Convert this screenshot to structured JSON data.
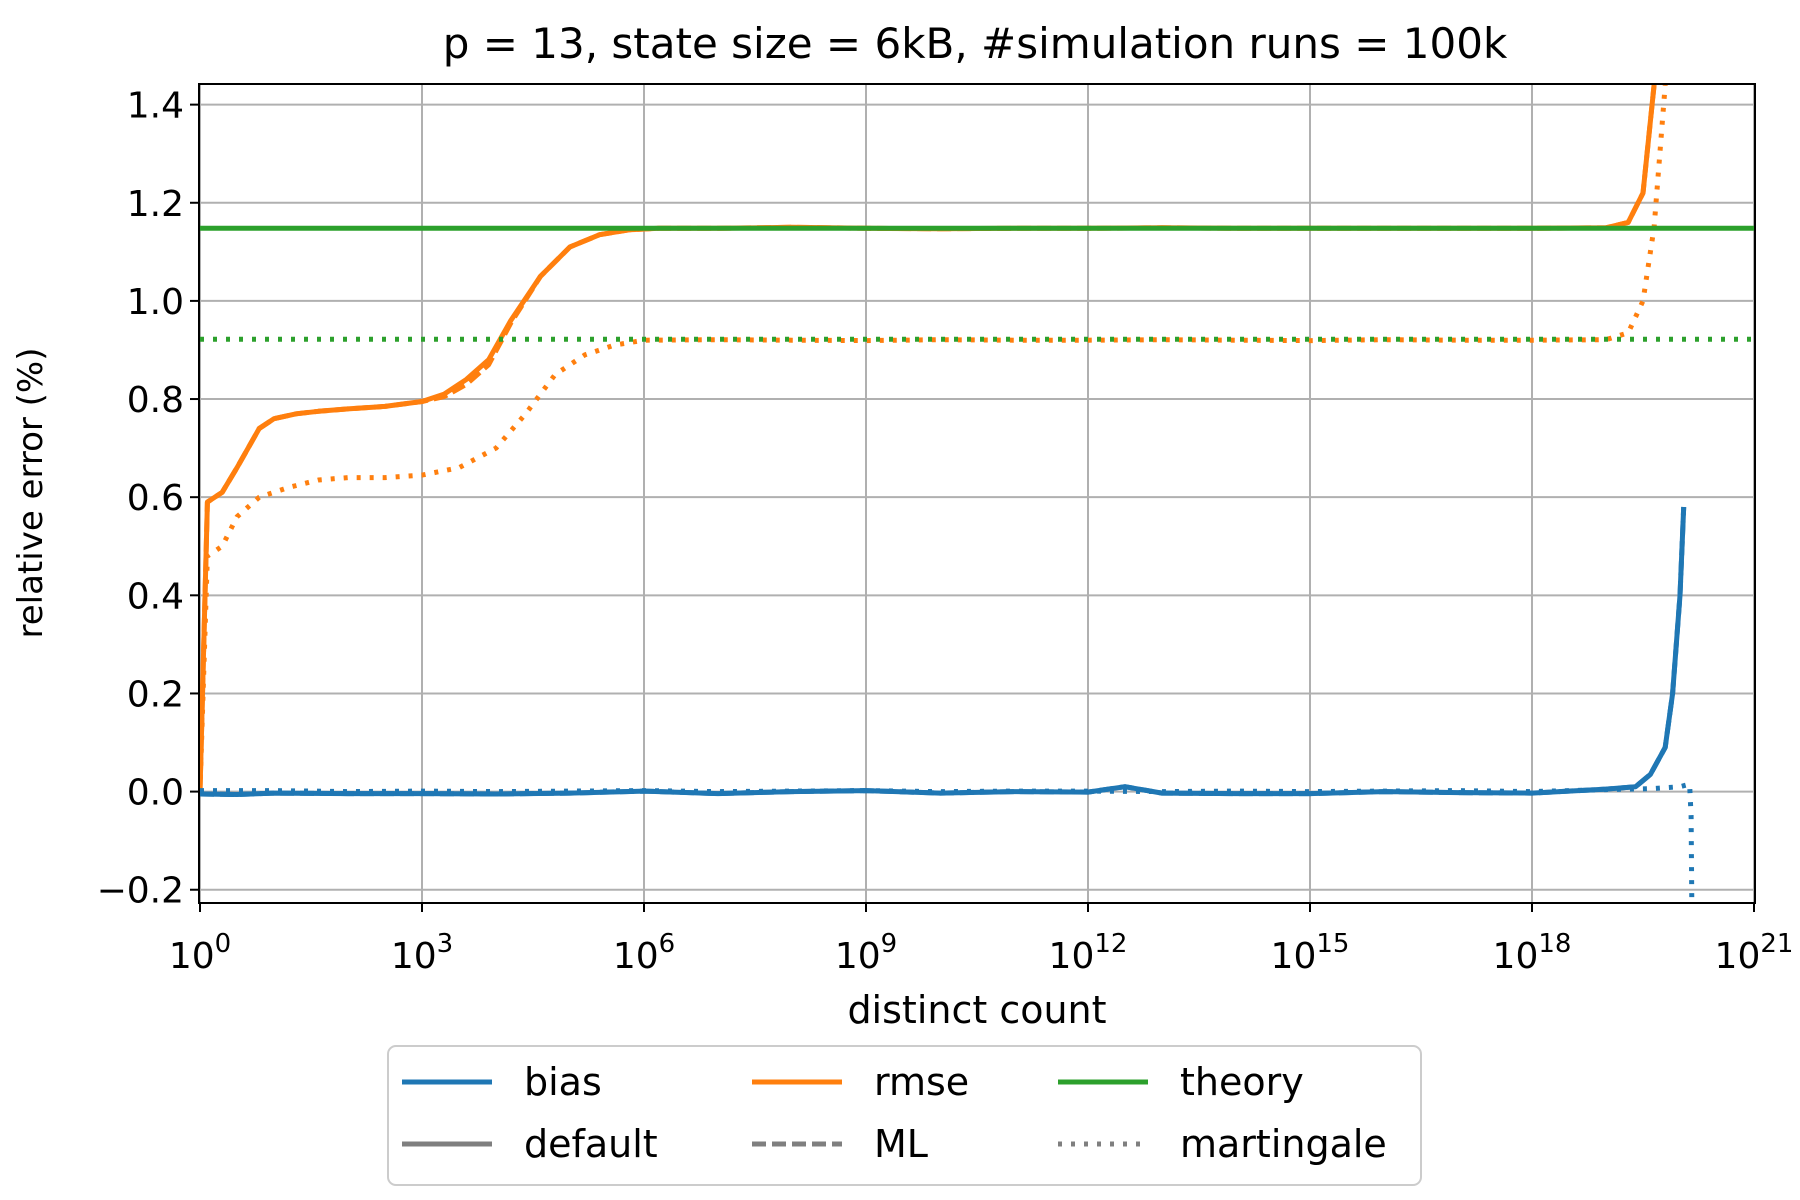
{
  "chart_data": {
    "type": "line",
    "title": "p = 13, state size = 6kB, #simulation runs = 100k",
    "xlabel": "distinct count",
    "ylabel": "relative error (%)",
    "xscale": "log",
    "xlim_exp": [
      0,
      21
    ],
    "ylim": [
      -0.225,
      1.44
    ],
    "x_ticks": [
      {
        "base": "10",
        "exp": "0"
      },
      {
        "base": "10",
        "exp": "3"
      },
      {
        "base": "10",
        "exp": "6"
      },
      {
        "base": "10",
        "exp": "9"
      },
      {
        "base": "10",
        "exp": "12"
      },
      {
        "base": "10",
        "exp": "15"
      },
      {
        "base": "10",
        "exp": "18"
      },
      {
        "base": "10",
        "exp": "21"
      }
    ],
    "x_tick_values": [
      0,
      3,
      6,
      9,
      12,
      15,
      18,
      21
    ],
    "y_ticks": [
      "−0.2",
      "0.0",
      "0.2",
      "0.4",
      "0.6",
      "0.8",
      "1.0",
      "1.2",
      "1.4"
    ],
    "y_tick_values": [
      -0.2,
      0.0,
      0.2,
      0.4,
      0.6,
      0.8,
      1.0,
      1.2,
      1.4
    ],
    "grid": true,
    "colors": {
      "bias": "#1f77b4",
      "rmse": "#ff7f0e",
      "theory": "#2ca02c",
      "style": "#7f7f7f"
    },
    "series": [
      {
        "name": "rmse (default)",
        "metric": "rmse",
        "style": "solid",
        "x_log10": [
          0,
          0.1,
          0.3,
          0.5,
          0.8,
          1.0,
          1.3,
          1.6,
          2,
          2.5,
          3,
          3.3,
          3.6,
          3.9,
          4.2,
          4.6,
          5,
          5.4,
          5.8,
          6.2,
          7,
          8,
          9,
          10,
          11,
          12,
          13,
          14,
          15,
          16,
          17,
          18,
          19,
          19.3,
          19.5,
          19.65
        ],
        "y": [
          0,
          0.59,
          0.61,
          0.66,
          0.74,
          0.76,
          0.77,
          0.775,
          0.78,
          0.785,
          0.795,
          0.81,
          0.84,
          0.88,
          0.96,
          1.05,
          1.11,
          1.135,
          1.145,
          1.148,
          1.148,
          1.15,
          1.148,
          1.147,
          1.148,
          1.148,
          1.149,
          1.148,
          1.148,
          1.148,
          1.148,
          1.148,
          1.149,
          1.16,
          1.22,
          1.44
        ]
      },
      {
        "name": "rmse (ML)",
        "metric": "rmse",
        "style": "dashed",
        "x_log10": [
          0,
          0.1,
          0.3,
          0.5,
          0.8,
          1.0,
          1.3,
          1.6,
          2,
          2.5,
          3,
          3.3,
          3.6,
          3.9,
          4.2,
          4.6,
          5,
          5.4,
          5.8,
          6.2,
          7,
          8,
          9,
          10,
          11,
          12,
          13,
          14,
          15,
          16,
          17,
          18,
          19,
          19.3,
          19.5,
          19.65
        ],
        "y": [
          0,
          0.59,
          0.61,
          0.66,
          0.74,
          0.76,
          0.77,
          0.775,
          0.78,
          0.785,
          0.795,
          0.805,
          0.83,
          0.87,
          0.955,
          1.05,
          1.11,
          1.135,
          1.145,
          1.148,
          1.148,
          1.15,
          1.148,
          1.147,
          1.148,
          1.148,
          1.149,
          1.148,
          1.148,
          1.148,
          1.148,
          1.148,
          1.149,
          1.16,
          1.22,
          1.44
        ]
      },
      {
        "name": "rmse (martingale)",
        "metric": "rmse",
        "style": "dotted",
        "x_log10": [
          0,
          0.1,
          0.3,
          0.5,
          0.8,
          1.2,
          1.6,
          2,
          2.5,
          3,
          3.5,
          4,
          4.4,
          4.8,
          5.2,
          5.6,
          6,
          7,
          8,
          9,
          10,
          11,
          12,
          13,
          14,
          15,
          16,
          17,
          18,
          19,
          19.3,
          19.5,
          19.65,
          19.8
        ],
        "y": [
          0,
          0.48,
          0.5,
          0.56,
          0.6,
          0.62,
          0.635,
          0.64,
          0.64,
          0.645,
          0.66,
          0.7,
          0.77,
          0.85,
          0.89,
          0.91,
          0.92,
          0.921,
          0.92,
          0.919,
          0.921,
          0.92,
          0.92,
          0.921,
          0.92,
          0.919,
          0.921,
          0.92,
          0.92,
          0.921,
          0.935,
          1.0,
          1.15,
          1.44
        ]
      },
      {
        "name": "bias (default)",
        "metric": "bias",
        "style": "solid",
        "x_log10": [
          0,
          0.5,
          1,
          2,
          3,
          4,
          5,
          6,
          7,
          8,
          9,
          10,
          11,
          12,
          12.5,
          13,
          14,
          15,
          16,
          17,
          18,
          19,
          19.4,
          19.6,
          19.8,
          19.9,
          20.0,
          20.05
        ],
        "y": [
          -0.005,
          -0.006,
          -0.003,
          -0.004,
          -0.004,
          -0.005,
          -0.003,
          0.001,
          -0.004,
          0.0,
          0.002,
          -0.003,
          0.0,
          -0.001,
          0.01,
          -0.003,
          -0.004,
          -0.004,
          0.0,
          -0.002,
          -0.003,
          0.005,
          0.01,
          0.035,
          0.09,
          0.2,
          0.4,
          0.58
        ]
      },
      {
        "name": "bias (ML)",
        "metric": "bias",
        "style": "dashed",
        "x_log10": [
          0,
          0.5,
          1,
          2,
          3,
          4,
          5,
          6,
          7,
          8,
          9,
          10,
          11,
          12,
          12.5,
          13,
          14,
          15,
          16,
          17,
          18,
          19,
          19.4,
          19.6,
          19.8,
          19.9,
          20.0,
          20.05
        ],
        "y": [
          -0.005,
          -0.006,
          -0.003,
          -0.004,
          -0.004,
          -0.005,
          -0.003,
          0.001,
          -0.004,
          0.0,
          0.002,
          -0.003,
          0.0,
          -0.001,
          0.01,
          -0.003,
          -0.004,
          -0.004,
          0.0,
          -0.002,
          -0.003,
          0.005,
          0.01,
          0.035,
          0.09,
          0.2,
          0.4,
          0.58
        ]
      },
      {
        "name": "bias (martingale)",
        "metric": "bias",
        "style": "dotted",
        "x_log10": [
          0,
          1,
          2,
          3,
          4,
          5,
          6,
          7,
          8,
          9,
          10,
          11,
          12,
          13,
          14,
          15,
          16,
          17,
          18,
          19,
          19.6,
          20.0,
          20.13,
          20.15,
          20.16
        ],
        "y": [
          0.002,
          0.002,
          0.0,
          0.001,
          0.0,
          0.001,
          0.002,
          0.0,
          0.001,
          0.002,
          0.0,
          0.001,
          0.001,
          0.0,
          0.001,
          0.0,
          0.001,
          0.002,
          0.0,
          0.004,
          0.006,
          0.01,
          0.015,
          -0.05,
          -0.225
        ]
      },
      {
        "name": "theory (default/ML)",
        "metric": "theory",
        "style": "solid",
        "x_log10": [
          0,
          21
        ],
        "y": [
          1.148,
          1.148
        ]
      },
      {
        "name": "theory (martingale)",
        "metric": "theory",
        "style": "dotted",
        "x_log10": [
          0,
          21
        ],
        "y": [
          0.922,
          0.922
        ]
      }
    ],
    "legend": {
      "placement": "bottom-center",
      "entries": [
        {
          "label": "bias",
          "kind": "color",
          "key": "bias"
        },
        {
          "label": "rmse",
          "kind": "color",
          "key": "rmse"
        },
        {
          "label": "theory",
          "kind": "color",
          "key": "theory"
        },
        {
          "label": "default",
          "kind": "style",
          "key": "solid"
        },
        {
          "label": "ML",
          "kind": "style",
          "key": "dashed"
        },
        {
          "label": "martingale",
          "kind": "style",
          "key": "dotted"
        }
      ]
    }
  }
}
